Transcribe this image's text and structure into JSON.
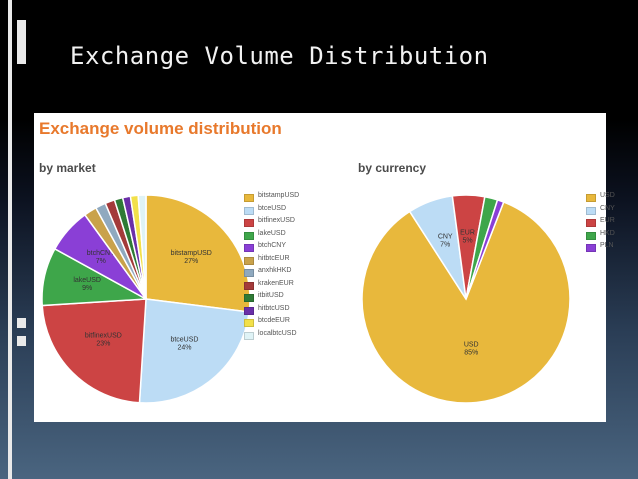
{
  "slide": {
    "title": "Exchange Volume Distribution"
  },
  "panel": {
    "title": "Exchange volume distribution",
    "by_market_label": "by market",
    "by_currency_label": "by currency"
  },
  "chart_data": [
    {
      "type": "pie",
      "title": "by market",
      "slices": [
        {
          "label": "bitstampUSD",
          "value": 27,
          "color": "#e8b83c",
          "annot": "bitstampUSD\n27%"
        },
        {
          "label": "btceUSD",
          "value": 24,
          "color": "#bcdcf5",
          "annot": "btceUSD\n24%"
        },
        {
          "label": "bitfinexUSD",
          "value": 23,
          "color": "#cc4444",
          "annot": "bitfinexUSD\n23%"
        },
        {
          "label": "lakeUSD",
          "value": 9,
          "color": "#3ea64a",
          "annot": "lakeUSD\n9%"
        },
        {
          "label": "btchCNY",
          "value": 7,
          "color": "#8a3fd6",
          "annot": "btchCNY\n7%"
        },
        {
          "label": "hitbtcEUR",
          "value": 2,
          "color": "#c9a24a",
          "annot": ""
        },
        {
          "label": "anxhkHKD",
          "value": 1.6,
          "color": "#8fa9bf",
          "annot": ""
        },
        {
          "label": "krakenEUR",
          "value": 1.5,
          "color": "#a33a3a",
          "annot": ""
        },
        {
          "label": "itbitUSD",
          "value": 1.3,
          "color": "#2e7a35",
          "annot": ""
        },
        {
          "label": "hitbtcUSD",
          "value": 1.2,
          "color": "#6a2fa8",
          "annot": ""
        },
        {
          "label": "btcdeEUR",
          "value": 1.2,
          "color": "#f2e04a",
          "annot": ""
        },
        {
          "label": "localbtcUSD",
          "value": 1.2,
          "color": "#dff3f6",
          "annot": ""
        }
      ]
    },
    {
      "type": "pie",
      "title": "by currency",
      "slices": [
        {
          "label": "USD",
          "value": 85,
          "color": "#e8b83c",
          "annot": "USD\n85%"
        },
        {
          "label": "CNY",
          "value": 7,
          "color": "#bcdcf5",
          "annot": "CNY\n7%"
        },
        {
          "label": "EUR",
          "value": 5,
          "color": "#cc4444",
          "annot": "EUR\n5%"
        },
        {
          "label": "HKD",
          "value": 2,
          "color": "#3ea64a",
          "annot": ""
        },
        {
          "label": "PLN",
          "value": 1,
          "color": "#8a3fd6",
          "annot": ""
        }
      ]
    }
  ]
}
